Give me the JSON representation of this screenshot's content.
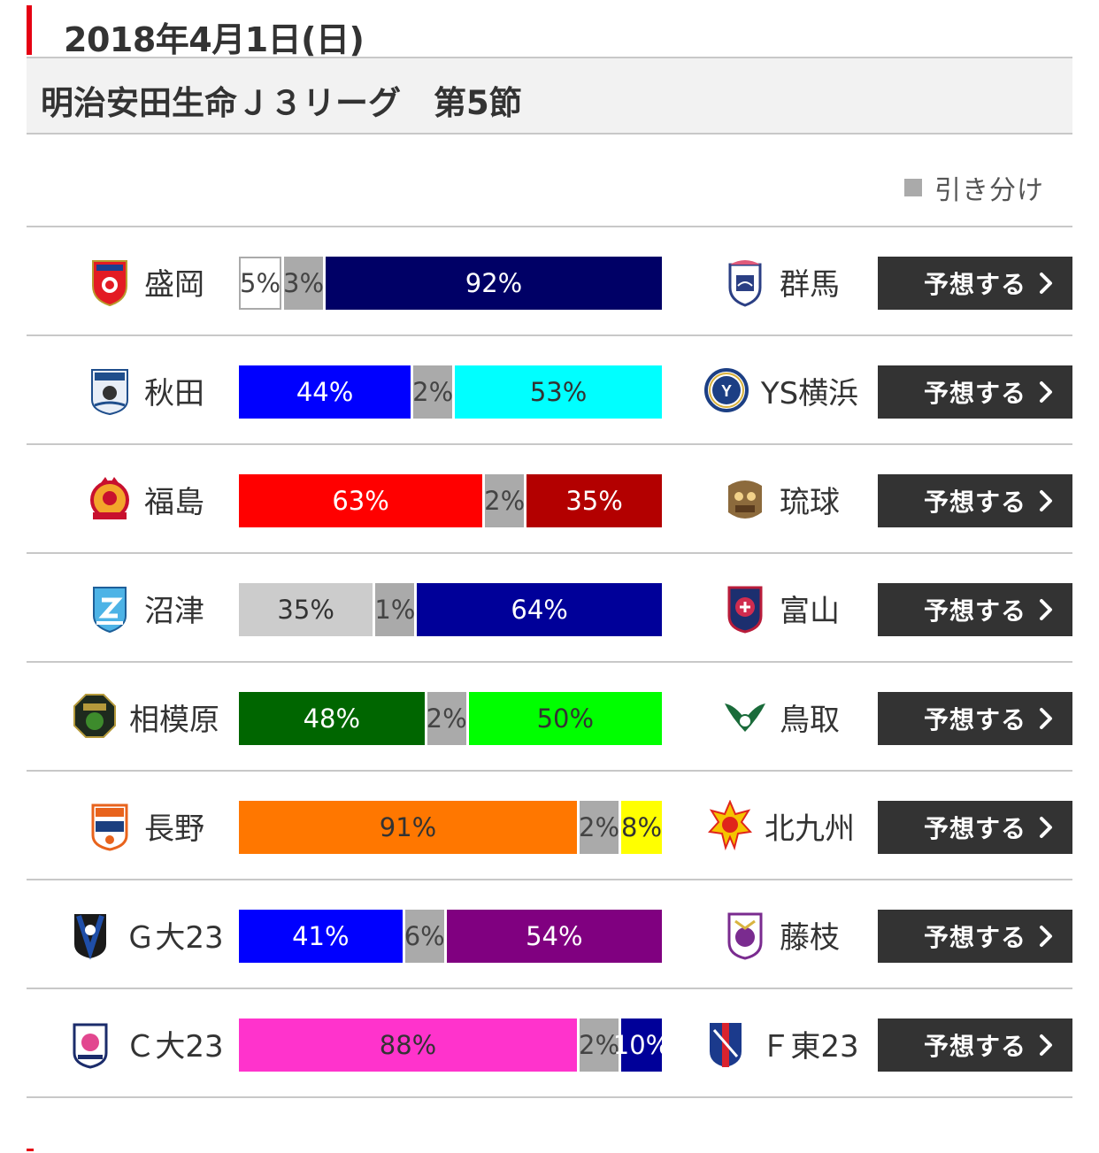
{
  "header": {
    "date": "2018年4月1日(日)",
    "league": "明治安田生命Ｊ３リーグ　第5節",
    "accent_color": "#e50012"
  },
  "legend": {
    "draw_label": "引き分け",
    "draw_color": "#aaaaaa"
  },
  "button_label": "予想する",
  "matches": [
    {
      "home": "盛岡",
      "away": "群馬",
      "home_pct": 5,
      "draw_pct": 3,
      "away_pct": 92,
      "home_label": "5%",
      "draw_label": "3%",
      "away_label": "92%",
      "home_color": "#ffffff",
      "away_color": "#000066",
      "home_text": "#444444",
      "away_text": "#ffffff",
      "home_icon": "shield-red-icon",
      "away_icon": "shield-navy-icon"
    },
    {
      "home": "秋田",
      "away": "YS横浜",
      "home_pct": 44,
      "draw_pct": 2,
      "away_pct": 53,
      "home_label": "44%",
      "draw_label": "2%",
      "away_label": "53%",
      "home_color": "#0000ff",
      "away_color": "#00ffff",
      "home_text": "#ffffff",
      "away_text": "#333333",
      "home_icon": "shield-blue-icon",
      "away_icon": "circle-navy-icon"
    },
    {
      "home": "福島",
      "away": "琉球",
      "home_pct": 63,
      "draw_pct": 2,
      "away_pct": 35,
      "home_label": "63%",
      "draw_label": "2%",
      "away_label": "35%",
      "home_color": "#ff0000",
      "away_color": "#b30000",
      "home_text": "#ffffff",
      "away_text": "#ffffff",
      "home_icon": "crest-orange-icon",
      "away_icon": "shisa-brown-icon"
    },
    {
      "home": "沼津",
      "away": "富山",
      "home_pct": 35,
      "draw_pct": 1,
      "away_pct": 64,
      "home_label": "35%",
      "draw_label": "1%",
      "away_label": "64%",
      "home_color": "#cccccc",
      "away_color": "#000099",
      "home_text": "#333333",
      "away_text": "#ffffff",
      "home_icon": "shield-lightblue-icon",
      "away_icon": "shield-red-navy-icon"
    },
    {
      "home": "相模原",
      "away": "鳥取",
      "home_pct": 48,
      "draw_pct": 2,
      "away_pct": 50,
      "home_label": "48%",
      "draw_label": "2%",
      "away_label": "50%",
      "home_color": "#006600",
      "away_color": "#00ff00",
      "home_text": "#ffffff",
      "away_text": "#333333",
      "home_icon": "octagon-green-icon",
      "away_icon": "wings-green-icon"
    },
    {
      "home": "長野",
      "away": "北九州",
      "home_pct": 91,
      "draw_pct": 2,
      "away_pct": 8,
      "home_label": "91%",
      "draw_label": "2%",
      "away_label": "8%",
      "home_color": "#ff7700",
      "away_color": "#ffff00",
      "home_text": "#333333",
      "away_text": "#333333",
      "home_icon": "shield-orange-icon",
      "away_icon": "sun-yellow-icon"
    },
    {
      "home": "Ｇ大23",
      "away": "藤枝",
      "home_pct": 41,
      "draw_pct": 6,
      "away_pct": 54,
      "home_label": "41%",
      "draw_label": "6%",
      "away_label": "54%",
      "home_color": "#0000ff",
      "away_color": "#800080",
      "home_text": "#ffffff",
      "away_text": "#ffffff",
      "home_icon": "crest-blackblue-icon",
      "away_icon": "shield-purple-icon"
    },
    {
      "home": "Ｃ大23",
      "away": "Ｆ東23",
      "home_pct": 88,
      "draw_pct": 2,
      "away_pct": 10,
      "home_label": "88%",
      "draw_label": "2%",
      "away_label": "10%",
      "home_color": "#ff33cc",
      "away_color": "#000099",
      "home_text": "#333333",
      "away_text": "#ffffff",
      "home_icon": "shield-pink-icon",
      "away_icon": "shield-blue-red-icon"
    }
  ]
}
